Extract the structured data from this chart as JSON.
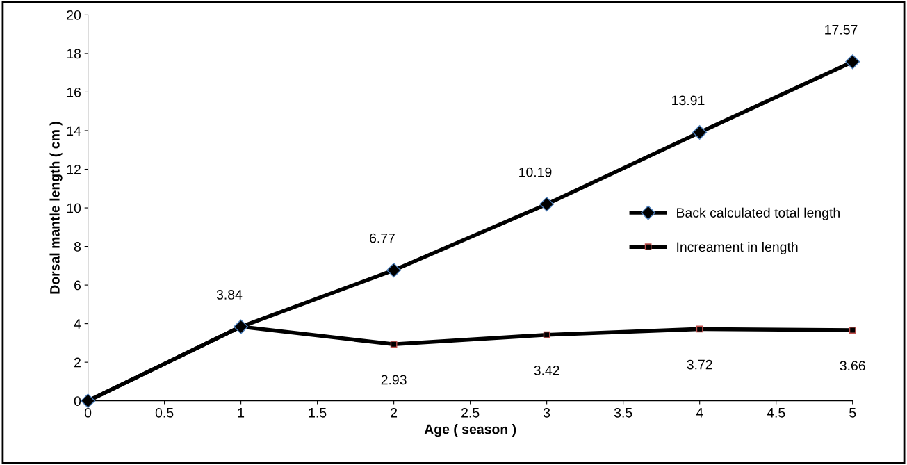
{
  "chart_data": {
    "type": "line",
    "xlabel": "Age ( season )",
    "ylabel": "Dorsal mantle length ( cm )",
    "x": [
      0,
      1,
      2,
      3,
      4,
      5
    ],
    "series": [
      {
        "name": "Back calculated total length",
        "color": "#000000",
        "marker": "diamond",
        "values": [
          0,
          3.84,
          6.77,
          10.19,
          13.91,
          17.57
        ],
        "value_labels": [
          null,
          "3.84",
          "6.77",
          "10.19",
          "13.91",
          "17.57"
        ]
      },
      {
        "name": "Increament in length",
        "color": "#000000",
        "marker": "square",
        "values": [
          0,
          3.84,
          2.93,
          3.42,
          3.72,
          3.66
        ],
        "value_labels": [
          null,
          null,
          "2.93",
          "3.42",
          "3.72",
          "3.66"
        ]
      }
    ],
    "xlim": [
      0,
      5
    ],
    "xticks": [
      0,
      0.5,
      1,
      1.5,
      2,
      2.5,
      3,
      3.5,
      4,
      4.5,
      5
    ],
    "ylim": [
      0,
      20
    ],
    "yticks": [
      0,
      2,
      4,
      6,
      8,
      10,
      12,
      14,
      16,
      18,
      20
    ],
    "grid": false,
    "legend": "right",
    "line_style": "solid"
  }
}
